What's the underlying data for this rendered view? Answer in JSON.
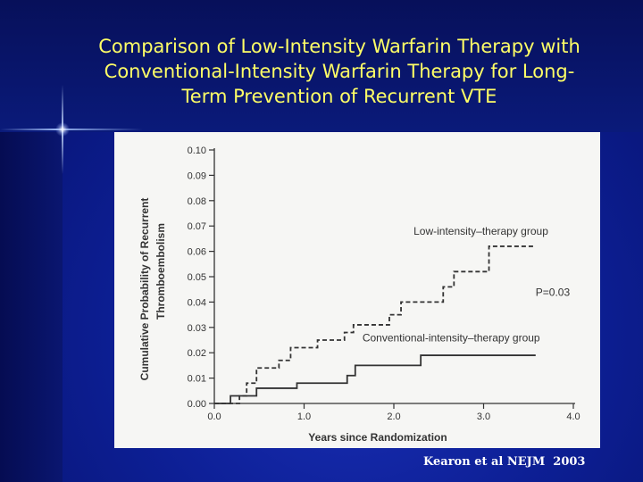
{
  "slide": {
    "title_lines": [
      "Comparison of Low-Intensity Warfarin Therapy with",
      "Conventional-Intensity Warfarin Therapy for Long-",
      "Term Prevention of Recurrent VTE"
    ],
    "citation": "Kearon et al NEJM  2003",
    "colors": {
      "title": "#ffff66",
      "background": "#0d1f95",
      "panel": "#f6f6f4",
      "ink": "#333333"
    }
  },
  "chart_data": {
    "type": "line",
    "title": "",
    "xlabel": "Years since Randomization",
    "ylabel_lines": [
      "Cumulative Probability of Recurrent",
      "Thromboembolism"
    ],
    "xlim": [
      0,
      4
    ],
    "ylim": [
      0,
      0.1
    ],
    "x_ticks": [
      "0.0",
      "1.0",
      "2.0",
      "3.0",
      "4.0"
    ],
    "y_ticks": [
      "0.00",
      "0.01",
      "0.02",
      "0.03",
      "0.04",
      "0.05",
      "0.06",
      "0.07",
      "0.08",
      "0.09",
      "0.10"
    ],
    "grid": false,
    "series": [
      {
        "name": "Low-intensity–therapy group",
        "style": "dashed",
        "step": true,
        "x": [
          0,
          0.28,
          0.36,
          0.47,
          0.72,
          0.85,
          1.15,
          1.45,
          1.55,
          1.95,
          2.08,
          2.55,
          2.67,
          3.06,
          3.56
        ],
        "y": [
          0,
          0.003,
          0.008,
          0.014,
          0.017,
          0.022,
          0.025,
          0.028,
          0.031,
          0.035,
          0.04,
          0.046,
          0.052,
          0.062,
          0.062
        ]
      },
      {
        "name": "Conventional-intensity–therapy group",
        "style": "solid",
        "step": true,
        "x": [
          0,
          0.18,
          0.47,
          0.92,
          1.48,
          1.57,
          2.3,
          3.58
        ],
        "y": [
          0,
          0.003,
          0.006,
          0.008,
          0.011,
          0.015,
          0.019,
          0.019
        ]
      }
    ],
    "annotations": [
      {
        "text": "Low-intensity–therapy group",
        "x": 2.22,
        "y": 0.0665
      },
      {
        "text": "P=0.03",
        "x": 3.58,
        "y": 0.0425
      },
      {
        "text": "Conventional-intensity–therapy group",
        "x": 1.65,
        "y": 0.0245
      }
    ]
  }
}
